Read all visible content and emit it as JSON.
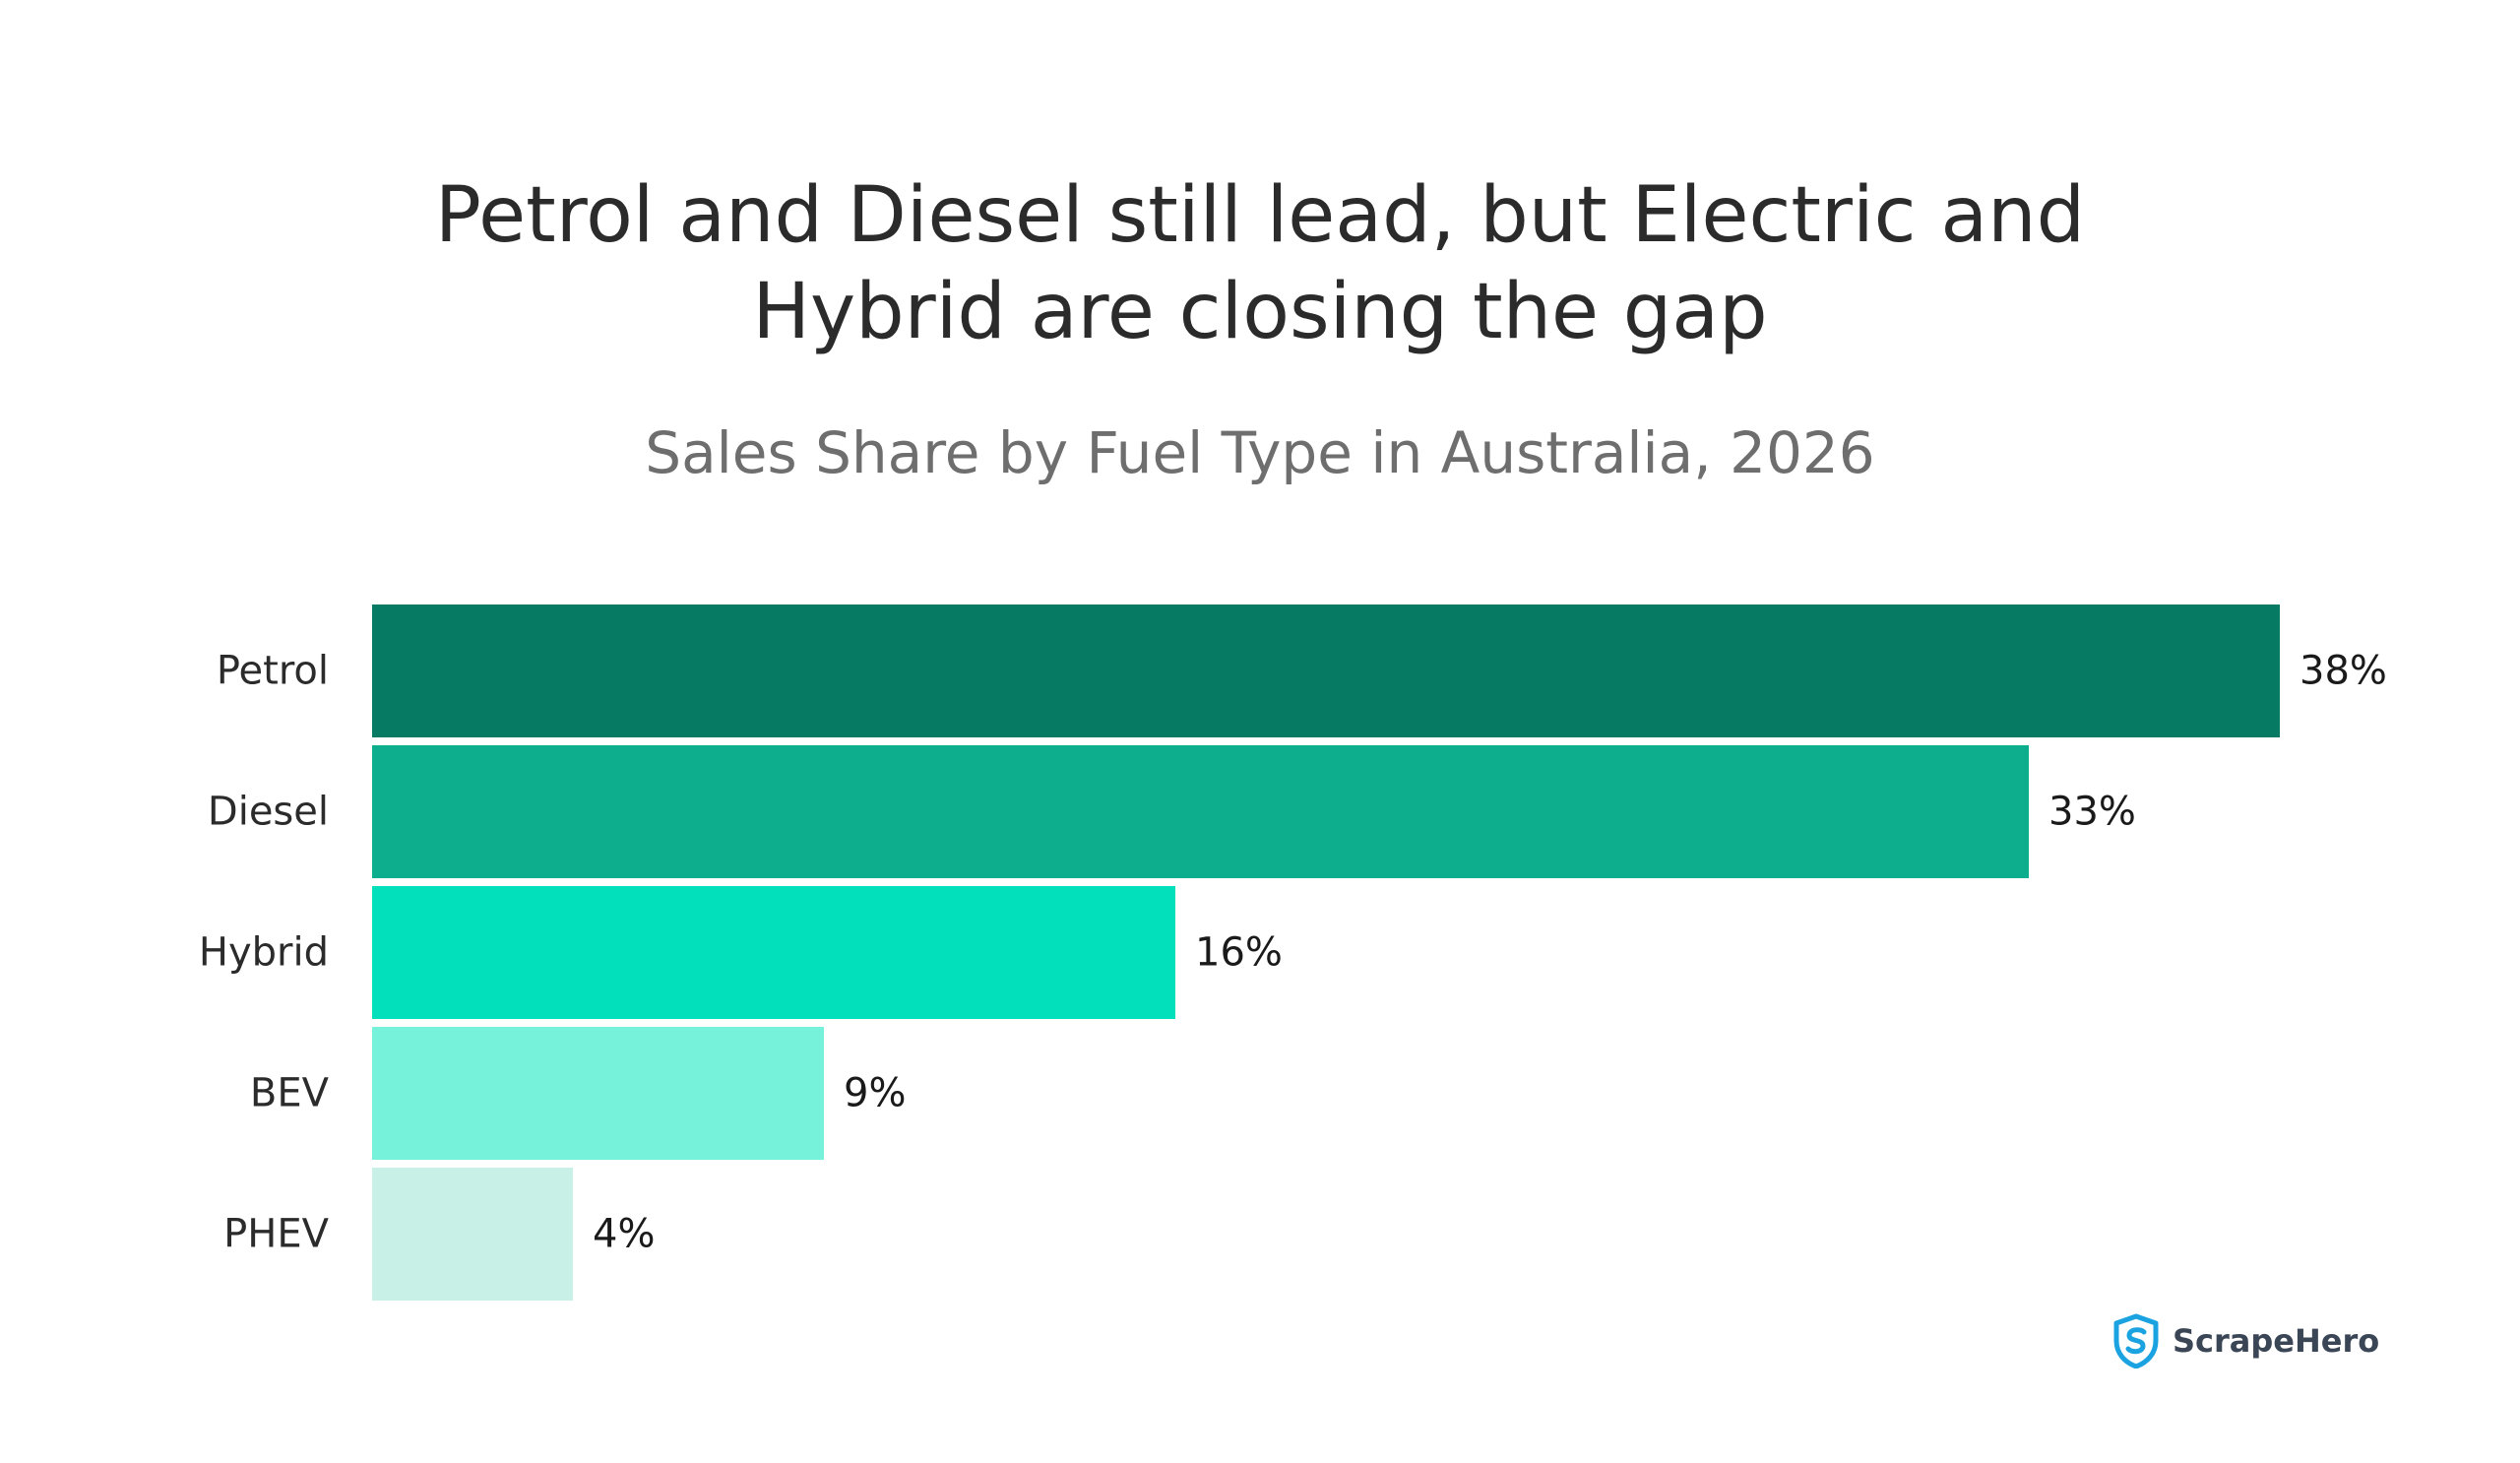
{
  "chart_data": {
    "type": "bar",
    "orientation": "horizontal",
    "title": "Petrol and Diesel still lead, but Electric and Hybrid are closing the gap",
    "title_lines": [
      "Petrol and Diesel still lead, but Electric and",
      "Hybrid are closing the gap"
    ],
    "subtitle": "Sales Share by Fuel Type in Australia, 2026",
    "categories": [
      "Petrol",
      "Diesel",
      "Hybrid",
      "BEV",
      "PHEV"
    ],
    "values": [
      38,
      33,
      16,
      9,
      4
    ],
    "value_labels": [
      "38%",
      "33%",
      "16%",
      "9%",
      "4%"
    ],
    "colors": [
      "#067a62",
      "#0dae8e",
      "#02dfbb",
      "#76f1da",
      "#c9f0e6"
    ],
    "xlabel": "",
    "ylabel": "",
    "xlim": [
      0,
      38
    ],
    "grid": false,
    "legend": "none"
  },
  "brand": {
    "name": "ScrapeHero",
    "logo_icon": "shield-s-icon",
    "color": "#1aa3e0"
  }
}
